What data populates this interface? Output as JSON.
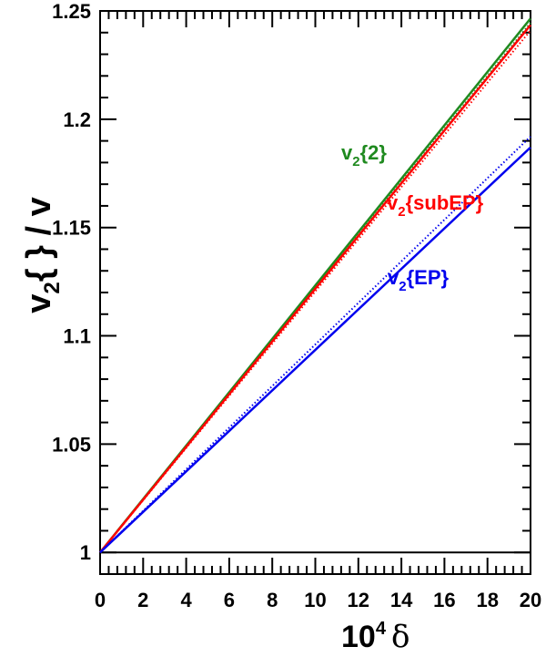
{
  "chart_data": {
    "type": "line",
    "title": "",
    "xlabel": {
      "base": "10",
      "sup": "4",
      "symbol": "δ"
    },
    "ylabel": {
      "v": "v",
      "sub": "2",
      "rest": "{ } / v"
    },
    "xlim": [
      0,
      20
    ],
    "ylim": [
      0.99,
      1.25
    ],
    "x_ticks": [
      "0",
      "2",
      "4",
      "6",
      "8",
      "10",
      "12",
      "14",
      "16",
      "18",
      "20"
    ],
    "y_ticks": [
      "1",
      "1.05",
      "1.1",
      "1.15",
      "1.2",
      "1.25"
    ],
    "grid": false,
    "reference_line": {
      "y": 1.0
    },
    "series": [
      {
        "name": "v2{2}",
        "label_main": "v",
        "label_sub": "2",
        "label_rest": "{2}",
        "color": "#1f8a1f",
        "solid": {
          "x": [
            0,
            20
          ],
          "y": [
            1.0,
            1.2465
          ]
        },
        "dotted": {
          "x": [
            0,
            20
          ],
          "y": [
            1.0,
            1.2445
          ]
        }
      },
      {
        "name": "v2{subEP}",
        "label_main": "v",
        "label_sub": "2",
        "label_rest": "{subEP}",
        "color": "#ff0000",
        "solid": {
          "x": [
            0,
            20
          ],
          "y": [
            1.0,
            1.2435
          ]
        },
        "dotted": {
          "x": [
            0,
            20
          ],
          "y": [
            1.0,
            1.241
          ]
        }
      },
      {
        "name": "v2{EP}",
        "label_main": "v",
        "label_sub": "2",
        "label_rest": "{EP}",
        "color": "#0000ee",
        "solid": {
          "x": [
            0,
            20
          ],
          "y": [
            1.0,
            1.187
          ]
        },
        "dotted": {
          "x": [
            0,
            20
          ],
          "y": [
            1.0,
            1.192
          ]
        }
      }
    ]
  }
}
